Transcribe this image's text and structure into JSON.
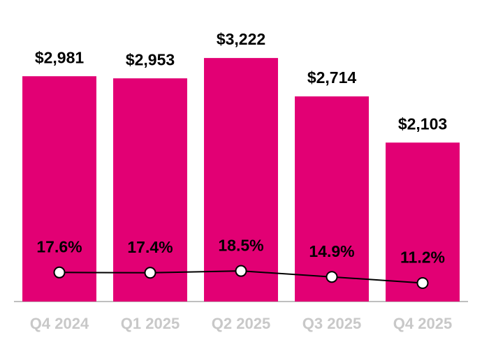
{
  "chart_data": {
    "type": "bar",
    "categories": [
      "Q4 2024",
      "Q1 2025",
      "Q2 2025",
      "Q3 2025",
      "Q4 2025"
    ],
    "series": [
      {
        "type": "bar",
        "color": "#e20074",
        "values": [
          2981,
          2953,
          3222,
          2714,
          2103
        ],
        "value_labels": [
          "$2,981",
          "$2,953",
          "$3,222",
          "$2,714",
          "$2,103"
        ]
      },
      {
        "type": "line",
        "axis": "y2",
        "color": "#000000",
        "values": [
          17.6,
          17.4,
          18.5,
          14.9,
          11.2
        ],
        "value_labels": [
          "17.6%",
          "17.4%",
          "18.5%",
          "14.9%",
          "11.2%"
        ]
      }
    ],
    "ylim": [
      0,
      3500
    ],
    "y2lim": [
      0,
      160
    ]
  }
}
